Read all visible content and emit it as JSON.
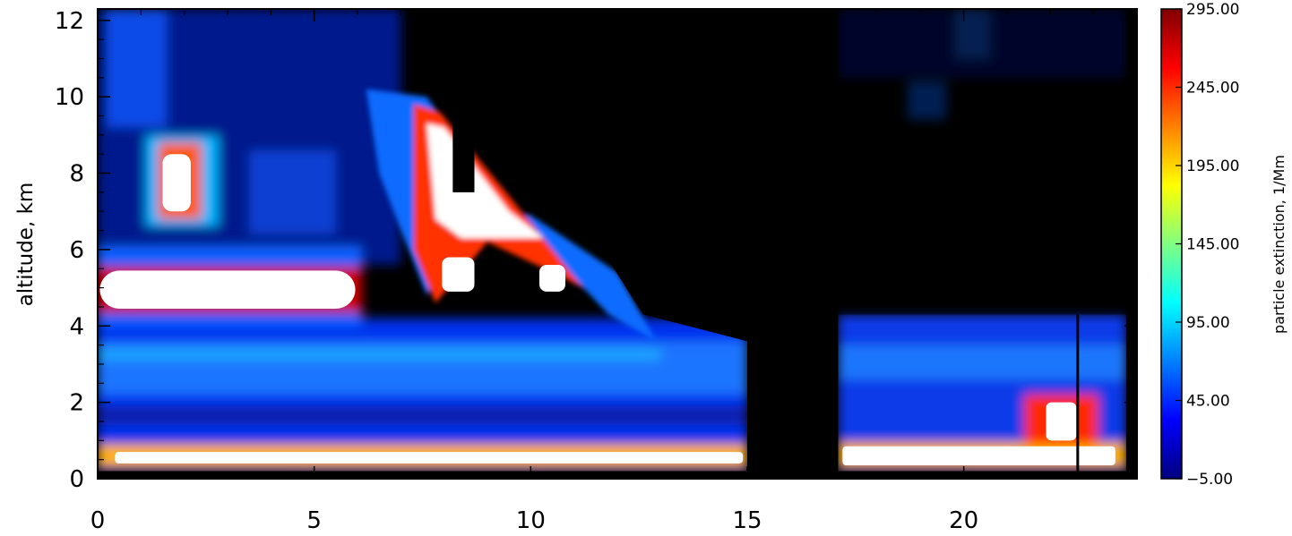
{
  "chart_data": {
    "type": "heatmap",
    "title": "",
    "xlabel": "",
    "ylabel": "altitude, km",
    "xlim": [
      0,
      24
    ],
    "ylim": [
      0,
      12.3
    ],
    "x_ticks": [
      "0",
      "5",
      "10",
      "15",
      "20"
    ],
    "y_ticks": [
      "0",
      "2",
      "4",
      "6",
      "8",
      "10",
      "12"
    ],
    "colorbar": {
      "label": "particle extinction, 1/Mm",
      "range": [
        -5,
        295
      ],
      "ticks": [
        "295.00",
        "245.00",
        "195.00",
        "145.00",
        "95.00",
        "45.00",
        "−5.00"
      ],
      "colormap": [
        "#00007f",
        "#0000ff",
        "#0080ff",
        "#00ffff",
        "#80ff80",
        "#ffff00",
        "#ff8000",
        "#ff0000",
        "#7f0000"
      ],
      "over_color": "#ffffff"
    },
    "background_color": "#000000",
    "features": [
      {
        "name": "elevated aerosol layer",
        "x": [
          0,
          6
        ],
        "y": [
          4.4,
          5.5
        ],
        "extinction": "above 295"
      },
      {
        "name": "cloud",
        "x": [
          1.4,
          2.4
        ],
        "y": [
          6.8,
          8.8
        ],
        "extinction": "above 295"
      },
      {
        "name": "tilted cloud band",
        "x": [
          7.5,
          11.5
        ],
        "y": [
          4.5,
          10
        ],
        "extinction": "above 295"
      },
      {
        "name": "boundary layer",
        "x": [
          0,
          24
        ],
        "y": [
          0.1,
          0.8
        ],
        "extinction": "above 295"
      },
      {
        "name": "near-surface plume",
        "x": [
          21.5,
          23
        ],
        "y": [
          0.8,
          2.2
        ],
        "extinction": "245-295"
      }
    ],
    "no_data_regions": [
      {
        "x": [
          15,
          17.1
        ],
        "y": [
          0,
          12.3
        ]
      },
      {
        "x": [
          8.2,
          8.7
        ],
        "y": [
          7.5,
          12.3
        ]
      },
      {
        "x": [
          23.75,
          24
        ],
        "y": [
          0,
          12.3
        ]
      }
    ]
  }
}
